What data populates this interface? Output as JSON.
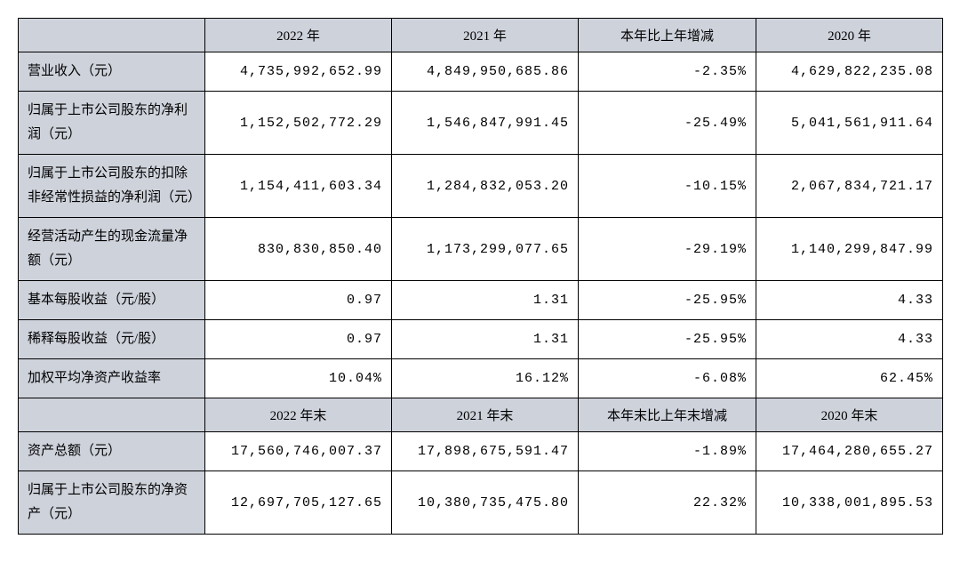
{
  "table": {
    "headers1": [
      "2022 年",
      "2021 年",
      "本年比上年增减",
      "2020 年"
    ],
    "headers2": [
      "2022 年末",
      "2021 年末",
      "本年末比上年末增减",
      "2020 年末"
    ],
    "rows1": [
      {
        "label": "营业收入（元）",
        "c2022": "4,735,992,652.99",
        "c2021": "4,849,950,685.86",
        "change": "-2.35%",
        "c2020": "4,629,822,235.08"
      },
      {
        "label": "归属于上市公司股东的净利润（元）",
        "c2022": "1,152,502,772.29",
        "c2021": "1,546,847,991.45",
        "change": "-25.49%",
        "c2020": "5,041,561,911.64"
      },
      {
        "label": "归属于上市公司股东的扣除非经常性损益的净利润（元）",
        "c2022": "1,154,411,603.34",
        "c2021": "1,284,832,053.20",
        "change": "-10.15%",
        "c2020": "2,067,834,721.17"
      },
      {
        "label": "经营活动产生的现金流量净额（元）",
        "c2022": "830,830,850.40",
        "c2021": "1,173,299,077.65",
        "change": "-29.19%",
        "c2020": "1,140,299,847.99"
      },
      {
        "label": "基本每股收益（元/股）",
        "c2022": "0.97",
        "c2021": "1.31",
        "change": "-25.95%",
        "c2020": "4.33"
      },
      {
        "label": "稀释每股收益（元/股）",
        "c2022": "0.97",
        "c2021": "1.31",
        "change": "-25.95%",
        "c2020": "4.33"
      },
      {
        "label": "加权平均净资产收益率",
        "c2022": "10.04%",
        "c2021": "16.12%",
        "change": "-6.08%",
        "c2020": "62.45%"
      }
    ],
    "rows2": [
      {
        "label": "资产总额（元）",
        "c2022": "17,560,746,007.37",
        "c2021": "17,898,675,591.47",
        "change": "-1.89%",
        "c2020": "17,464,280,655.27"
      },
      {
        "label": "归属于上市公司股东的净资产（元）",
        "c2022": "12,697,705,127.65",
        "c2021": "10,380,735,475.80",
        "change": "22.32%",
        "c2020": "10,338,001,895.53"
      }
    ]
  }
}
